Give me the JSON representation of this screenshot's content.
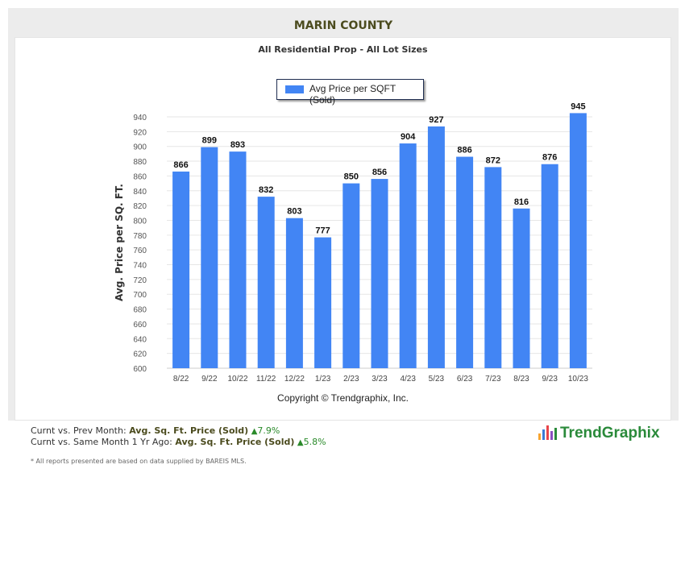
{
  "header": {
    "title": "MARIN COUNTY",
    "subtitle": "All Residential Prop - All Lot Sizes"
  },
  "chart_data": {
    "type": "bar",
    "categories": [
      "8/22",
      "9/22",
      "10/22",
      "11/22",
      "12/22",
      "1/23",
      "2/23",
      "3/23",
      "4/23",
      "5/23",
      "6/23",
      "7/23",
      "8/23",
      "9/23",
      "10/23"
    ],
    "series": [
      {
        "name": "Avg Price per SQFT (Sold)",
        "values": [
          866,
          899,
          893,
          832,
          803,
          777,
          850,
          856,
          904,
          927,
          886,
          872,
          816,
          876,
          945
        ],
        "color": "#4285f4"
      }
    ],
    "ylabel": "Avg. Price per SQ. FT.",
    "xlabel": "",
    "ylim": [
      600,
      940
    ],
    "yticks": [
      600,
      620,
      640,
      660,
      680,
      700,
      720,
      740,
      760,
      780,
      800,
      820,
      840,
      860,
      880,
      900,
      920,
      940
    ],
    "grid": true,
    "legend": "top-center",
    "data_labels": true
  },
  "copyright": "Copyright © Trendgraphix, Inc.",
  "stats": [
    {
      "label": "Curnt vs. Prev Month:",
      "metric": "Avg. Sq. Ft. Price (Sold)",
      "value": "7.9%",
      "direction": "up"
    },
    {
      "label": "Curnt vs. Same Month 1 Yr Ago:",
      "metric": "Avg. Sq. Ft. Price (Sold)",
      "value": "5.8%",
      "direction": "up"
    }
  ],
  "note": "* All reports presented are based on data supplied by BAREIS MLS.",
  "logo": "TrendGraphix"
}
